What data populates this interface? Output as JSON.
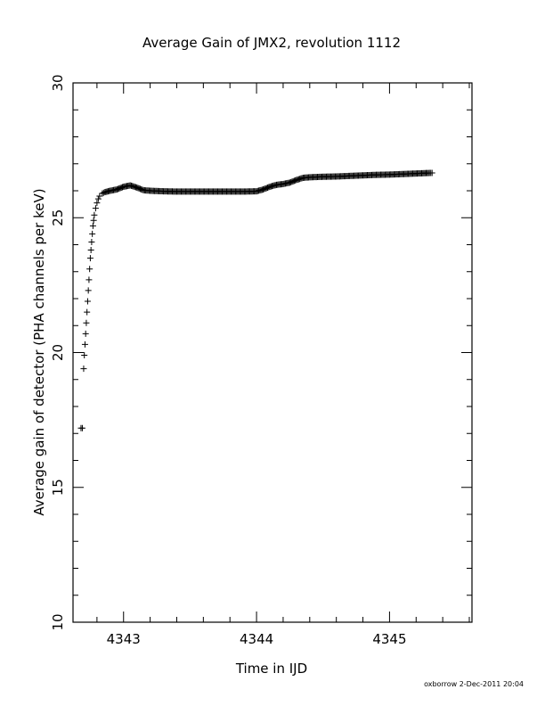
{
  "chart_data": {
    "type": "scatter",
    "title": "Average Gain of JMX2, revolution 1112",
    "xlabel": "Time in IJD",
    "ylabel": "Average gain of detector (PHA channels per keV)",
    "xlim": [
      4342.62,
      4345.62
    ],
    "ylim": [
      10,
      30
    ],
    "x_ticks": [
      4343,
      4344,
      4345
    ],
    "x_tick_labels": [
      "4343",
      "4344",
      "4345"
    ],
    "y_ticks": [
      10,
      15,
      20,
      25,
      30
    ],
    "y_tick_labels": [
      "10",
      "15",
      "20",
      "25",
      "30"
    ],
    "marker": "+",
    "grid": false,
    "series": [
      {
        "points": [
          [
            4342.68,
            17.2
          ],
          [
            4342.69,
            17.2
          ],
          [
            4342.7,
            19.4
          ],
          [
            4342.705,
            19.9
          ],
          [
            4342.71,
            20.3
          ],
          [
            4342.715,
            20.7
          ],
          [
            4342.72,
            21.1
          ],
          [
            4342.725,
            21.5
          ],
          [
            4342.73,
            21.9
          ],
          [
            4342.735,
            22.3
          ],
          [
            4342.74,
            22.7
          ],
          [
            4342.745,
            23.1
          ],
          [
            4342.75,
            23.5
          ],
          [
            4342.755,
            23.8
          ],
          [
            4342.76,
            24.1
          ],
          [
            4342.765,
            24.4
          ],
          [
            4342.77,
            24.7
          ],
          [
            4342.775,
            24.9
          ],
          [
            4342.78,
            25.1
          ],
          [
            4342.79,
            25.35
          ],
          [
            4342.8,
            25.55
          ],
          [
            4342.81,
            25.7
          ],
          [
            4342.82,
            25.8
          ],
          [
            4342.84,
            25.9
          ],
          [
            4342.86,
            25.95
          ],
          [
            4342.9,
            26.0
          ],
          [
            4342.95,
            26.05
          ],
          [
            4343.0,
            26.15
          ],
          [
            4343.05,
            26.2
          ],
          [
            4343.1,
            26.12
          ],
          [
            4343.15,
            26.02
          ],
          [
            4343.2,
            26.0
          ],
          [
            4343.3,
            25.98
          ],
          [
            4343.4,
            25.97
          ],
          [
            4343.5,
            25.97
          ],
          [
            4343.6,
            25.97
          ],
          [
            4343.7,
            25.97
          ],
          [
            4343.8,
            25.97
          ],
          [
            4343.9,
            25.97
          ],
          [
            4344.0,
            25.98
          ],
          [
            4344.05,
            26.05
          ],
          [
            4344.1,
            26.15
          ],
          [
            4344.15,
            26.22
          ],
          [
            4344.2,
            26.25
          ],
          [
            4344.25,
            26.3
          ],
          [
            4344.3,
            26.4
          ],
          [
            4344.35,
            26.48
          ],
          [
            4344.4,
            26.5
          ],
          [
            4344.5,
            26.52
          ],
          [
            4344.6,
            26.53
          ],
          [
            4344.7,
            26.55
          ],
          [
            4344.8,
            26.57
          ],
          [
            4344.9,
            26.59
          ],
          [
            4345.0,
            26.6
          ],
          [
            4345.1,
            26.62
          ],
          [
            4345.2,
            26.64
          ],
          [
            4345.3,
            26.66
          ],
          [
            4345.32,
            26.66
          ]
        ]
      }
    ]
  },
  "footer_stamp": "oxborrow   2-Dec-2011 20:04"
}
